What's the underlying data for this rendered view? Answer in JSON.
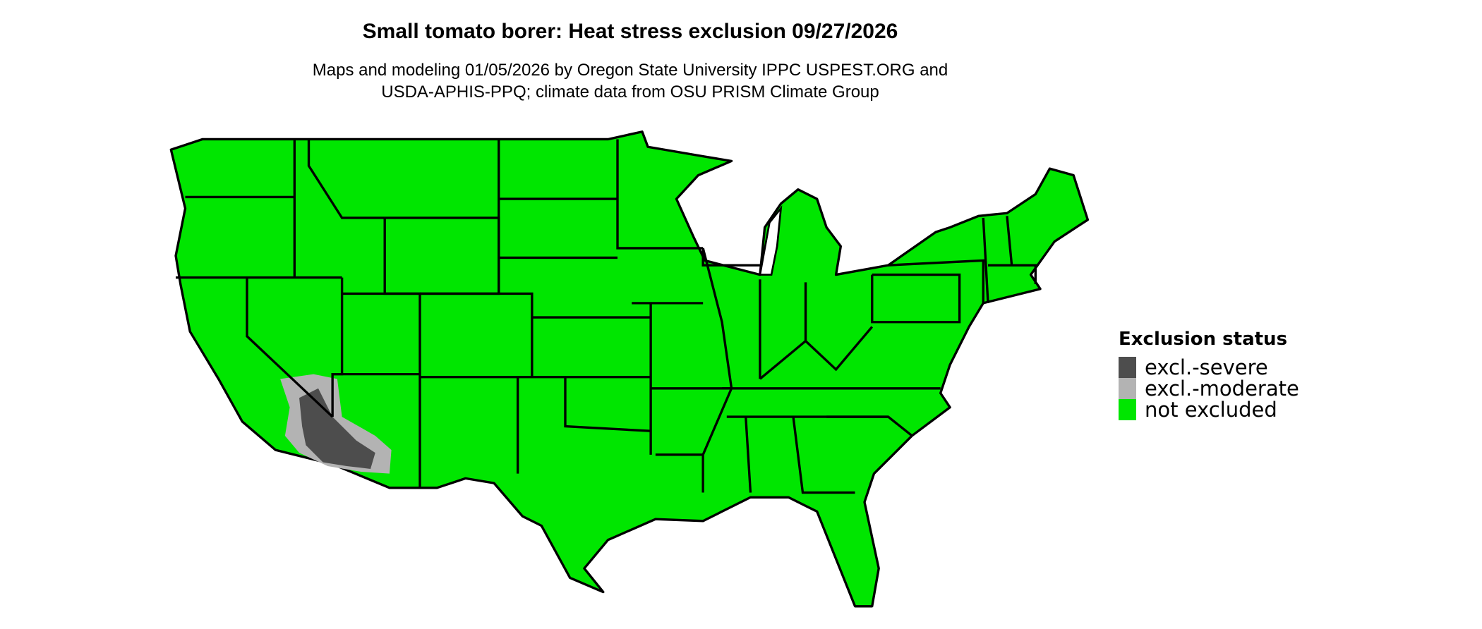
{
  "title": "Small tomato borer: Heat stress exclusion 09/27/2026",
  "subtitle_line1": "Maps and modeling 01/05/2026 by Oregon State University IPPC USPEST.ORG and",
  "subtitle_line2": "USDA-APHIS-PPQ; climate data from OSU PRISM Climate Group",
  "legend": {
    "title": "Exclusion status",
    "items": [
      {
        "label": "excl.-severe",
        "color": "#4d4d4d"
      },
      {
        "label": "excl.-moderate",
        "color": "#b3b3b3"
      },
      {
        "label": "not excluded",
        "color": "#00e600"
      }
    ]
  },
  "map": {
    "region": "Contiguous United States",
    "base_color": "#00e600",
    "border_color": "#000000",
    "excluded_area": "Southwestern Arizona / southeastern California (Colorado River region)"
  }
}
